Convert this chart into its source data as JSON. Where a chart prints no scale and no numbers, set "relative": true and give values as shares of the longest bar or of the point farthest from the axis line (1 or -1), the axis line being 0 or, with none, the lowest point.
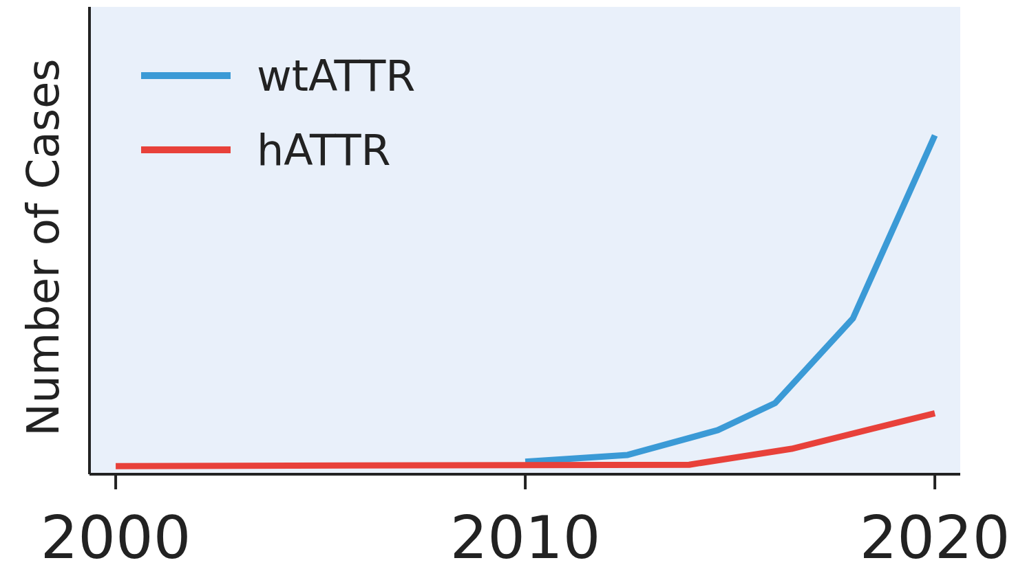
{
  "chart_data": {
    "type": "line",
    "ylabel": "Number of Cases",
    "relative": true,
    "xlim": [
      1999.36,
      2020.62
    ],
    "xticks": [
      2000,
      2010,
      2020
    ],
    "legend": "top left",
    "grid": false,
    "marker": "none",
    "line_style": "solid",
    "series": [
      {
        "name": "wtATTR",
        "color": "#3b9ad6",
        "x": [
          2010,
          2012.5,
          2014.7,
          2016.1,
          2018,
          2020
        ],
        "values": [
          0.037,
          0.057,
          0.13,
          0.21,
          0.46,
          1
        ]
      },
      {
        "name": "hATTR",
        "color": "#e8413a",
        "x": [
          2000,
          2014,
          2016.5,
          2020
        ],
        "values": [
          0.024,
          0.028,
          0.075,
          0.18
        ]
      }
    ]
  }
}
